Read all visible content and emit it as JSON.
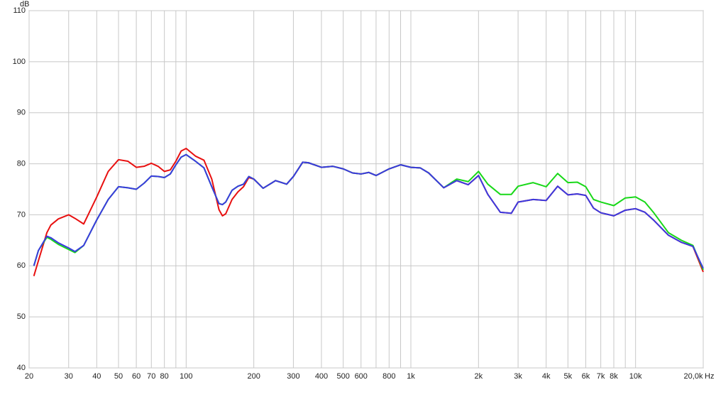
{
  "chart_data": {
    "type": "line",
    "x_label": "Hz",
    "y_label": "dB",
    "x": [
      21,
      22,
      24,
      25,
      27,
      30,
      32,
      35,
      40,
      45,
      50,
      55,
      60,
      65,
      70,
      75,
      80,
      85,
      90,
      95,
      100,
      110,
      120,
      130,
      140,
      145,
      150,
      160,
      170,
      180,
      190,
      200,
      220,
      250,
      280,
      300,
      330,
      350,
      400,
      450,
      500,
      550,
      600,
      650,
      700,
      800,
      900,
      1000,
      1100,
      1200,
      1400,
      1600,
      1800,
      2000,
      2200,
      2500,
      2800,
      3000,
      3500,
      4000,
      4500,
      5000,
      5500,
      6000,
      6500,
      7000,
      8000,
      9000,
      10000,
      11000,
      12000,
      14000,
      16000,
      18000,
      20000
    ],
    "series": [
      {
        "color": "#e81010",
        "values": [
          58,
          61,
          66.5,
          68,
          69.2,
          70,
          69.3,
          68.2,
          73.5,
          78.5,
          80.8,
          80.5,
          79.3,
          79.5,
          80.1,
          79.5,
          78.5,
          78.8,
          80.5,
          82.5,
          83,
          81.5,
          80.7,
          77,
          71,
          69.8,
          70.2,
          73,
          74.5,
          75.5,
          77.3,
          77,
          75.2,
          76.7,
          76,
          77.5,
          80.3,
          80.2,
          79.3,
          79.5,
          79,
          78.2,
          78,
          78.3,
          77.7,
          79,
          79.8,
          79.3,
          79.2,
          78.2,
          75.3,
          76.7,
          75.9,
          77.7,
          74,
          70.5,
          70.3,
          72.5,
          73,
          72.8,
          75.6,
          73.9,
          74.1,
          73.8,
          71.3,
          70.4,
          69.8,
          70.9,
          71.2,
          70.5,
          69,
          66,
          64.6,
          63.8,
          58.8
        ]
      },
      {
        "color": "#18d818",
        "values": [
          60,
          63,
          65.6,
          65.2,
          64.2,
          63.2,
          62.6,
          64,
          69,
          73,
          75.5,
          75.3,
          75,
          76.2,
          77.6,
          77.5,
          77.3,
          78,
          79.8,
          81.3,
          81.8,
          80.5,
          79.2,
          75.5,
          72.2,
          72,
          72.5,
          74.8,
          75.6,
          76,
          77.5,
          77,
          75.2,
          76.7,
          76,
          77.5,
          80.3,
          80.2,
          79.3,
          79.5,
          79,
          78.2,
          78,
          78.3,
          77.7,
          79,
          79.8,
          79.3,
          79.2,
          78.2,
          75.3,
          77,
          76.5,
          78.5,
          76,
          74,
          74,
          75.6,
          76.3,
          75.5,
          78.1,
          76.3,
          76.4,
          75.5,
          73,
          72.5,
          71.8,
          73.3,
          73.5,
          72.5,
          70.5,
          66.5,
          65,
          64,
          59.2
        ]
      },
      {
        "color": "#3a3ae0",
        "values": [
          60,
          63,
          65.8,
          65.5,
          64.5,
          63.5,
          62.8,
          64,
          69,
          73,
          75.5,
          75.3,
          75,
          76.2,
          77.6,
          77.5,
          77.3,
          78,
          79.8,
          81.3,
          81.8,
          80.5,
          79.2,
          75.5,
          72.2,
          72,
          72.5,
          74.8,
          75.6,
          76,
          77.5,
          77,
          75.2,
          76.7,
          76,
          77.5,
          80.3,
          80.2,
          79.3,
          79.5,
          79,
          78.2,
          78,
          78.3,
          77.7,
          79,
          79.8,
          79.3,
          79.2,
          78.2,
          75.3,
          76.7,
          75.9,
          77.7,
          74,
          70.5,
          70.3,
          72.5,
          73,
          72.8,
          75.6,
          73.9,
          74.1,
          73.8,
          71.3,
          70.4,
          69.8,
          70.9,
          71.2,
          70.5,
          69,
          66,
          64.6,
          63.8,
          59.5
        ]
      }
    ],
    "xlim": [
      20,
      20000
    ],
    "ylim": [
      40,
      110
    ],
    "log_x": true,
    "grid": true,
    "xgrid": [
      90,
      700,
      900,
      9000
    ],
    "xticks": [
      20,
      30,
      40,
      50,
      60,
      70,
      80,
      100,
      200,
      300,
      400,
      500,
      600,
      800,
      {
        "value": 1000,
        "label": "1k"
      },
      {
        "value": 2000,
        "label": "2k"
      },
      {
        "value": 3000,
        "label": "3k"
      },
      {
        "value": 4000,
        "label": "4k"
      },
      {
        "value": 5000,
        "label": "5k"
      },
      {
        "value": 6000,
        "label": "6k"
      },
      {
        "value": 7000,
        "label": "7k"
      },
      {
        "value": 8000,
        "label": "8k"
      },
      {
        "value": 10000,
        "label": "10k"
      },
      {
        "value": 20000,
        "label": "20,0k"
      }
    ],
    "yticks": [
      40,
      50,
      60,
      70,
      80,
      90,
      100,
      110
    ]
  }
}
